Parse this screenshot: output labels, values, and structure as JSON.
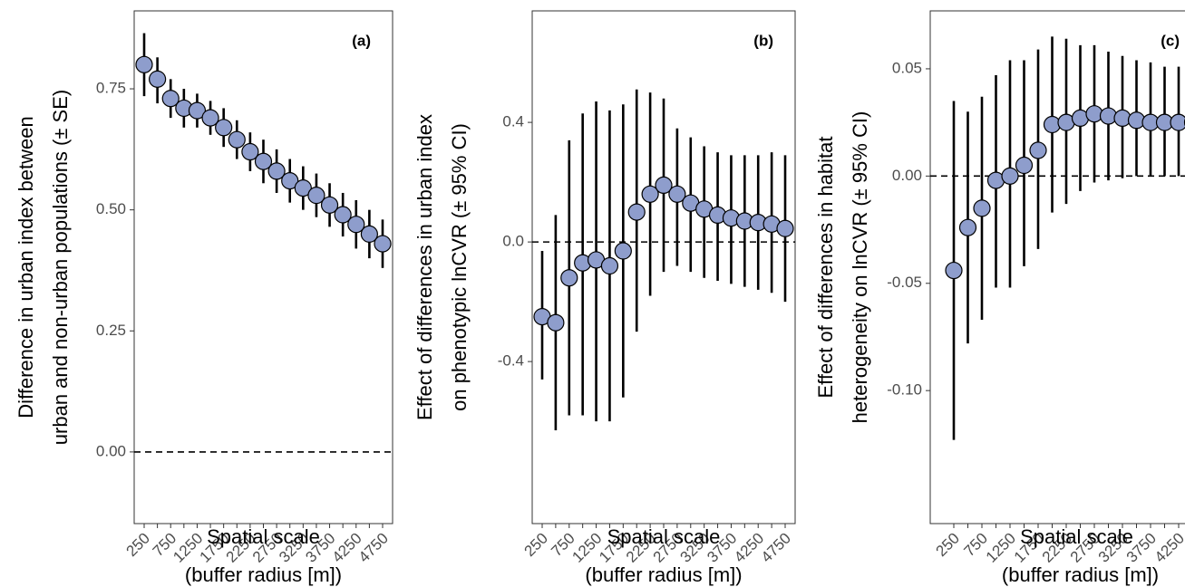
{
  "chart_data": [
    {
      "type": "errorbar",
      "panel_label": "(a)",
      "y_label": [
        "Difference in urban index between",
        "urban and non-urban populations (± SE)"
      ],
      "x_label": [
        "Spatial scale",
        "(buffer radius [m])"
      ],
      "categories": [
        "250",
        null,
        "750",
        null,
        "1250",
        null,
        "1750",
        null,
        "2250",
        null,
        "2750",
        null,
        "3250",
        null,
        "3750",
        null,
        "4250",
        null,
        "4750"
      ],
      "values": [
        0.8,
        0.77,
        0.73,
        0.71,
        0.705,
        0.69,
        0.67,
        0.645,
        0.62,
        0.6,
        0.58,
        0.56,
        0.545,
        0.53,
        0.51,
        0.49,
        0.47,
        0.45,
        0.43
      ],
      "lower": [
        0.735,
        0.72,
        0.69,
        0.67,
        0.67,
        0.655,
        0.63,
        0.605,
        0.58,
        0.555,
        0.535,
        0.515,
        0.5,
        0.485,
        0.465,
        0.445,
        0.42,
        0.4,
        0.38
      ],
      "upper": [
        0.865,
        0.815,
        0.77,
        0.75,
        0.74,
        0.725,
        0.71,
        0.685,
        0.66,
        0.645,
        0.625,
        0.605,
        0.59,
        0.575,
        0.555,
        0.535,
        0.52,
        0.5,
        0.48
      ],
      "color": "#8e9dcc",
      "hline": 0,
      "ylim": [
        -0.148,
        0.911
      ],
      "yticks": [
        {
          "value": 0,
          "label": "0.00"
        },
        {
          "value": 0.25,
          "label": "0.25"
        },
        {
          "value": 0.5,
          "label": "0.50"
        },
        {
          "value": 0.75,
          "label": "0.75"
        }
      ]
    },
    {
      "type": "errorbar",
      "panel_label": "(b)",
      "y_label": [
        "Effect of differences in urban index",
        "on phenotypic lnCVR (± 95% CI)"
      ],
      "x_label": [
        "Spatial scale",
        "(buffer radius [m])"
      ],
      "categories": [
        "250",
        null,
        "750",
        null,
        "1250",
        null,
        "1750",
        null,
        "2250",
        null,
        "2750",
        null,
        "3250",
        null,
        "3750",
        null,
        "4250",
        null,
        "4750"
      ],
      "values": [
        -0.25,
        -0.27,
        -0.12,
        -0.07,
        -0.06,
        -0.08,
        -0.03,
        0.1,
        0.16,
        0.19,
        0.16,
        0.13,
        0.11,
        0.09,
        0.08,
        0.07,
        0.065,
        0.06,
        0.045
      ],
      "lower": [
        -0.46,
        -0.63,
        -0.58,
        -0.58,
        -0.6,
        -0.6,
        -0.52,
        -0.3,
        -0.18,
        -0.1,
        -0.08,
        -0.1,
        -0.12,
        -0.13,
        -0.14,
        -0.15,
        -0.16,
        -0.17,
        -0.2
      ],
      "upper": [
        -0.03,
        0.09,
        0.34,
        0.43,
        0.47,
        0.44,
        0.46,
        0.51,
        0.5,
        0.48,
        0.38,
        0.35,
        0.32,
        0.3,
        0.29,
        0.29,
        0.29,
        0.3,
        0.29
      ],
      "color": "#8e9dcc",
      "hline": 0,
      "ylim": [
        -0.942,
        0.773
      ],
      "yticks": [
        -0.4,
        {
          "value": 0,
          "label": "0.0"
        },
        0.4
      ]
    },
    {
      "type": "errorbar",
      "panel_label": "(c)",
      "y_label": [
        "Effect of differences in habitat",
        "heterogeneity on lnCVR (± 95% CI)"
      ],
      "x_label": [
        "Spatial scale",
        "(buffer radius [m])"
      ],
      "categories": [
        "250",
        null,
        "750",
        null,
        "1250",
        null,
        "1750",
        null,
        "2250",
        null,
        "2750",
        null,
        "3250",
        null,
        "3750",
        null,
        "4250",
        null,
        "4750"
      ],
      "values": [
        -0.044,
        -0.024,
        -0.015,
        -0.002,
        0.0,
        0.005,
        0.012,
        0.024,
        0.025,
        0.027,
        0.029,
        0.028,
        0.027,
        0.026,
        0.025,
        0.025,
        0.025,
        0.025,
        0.025
      ],
      "lower": [
        -0.123,
        -0.078,
        -0.067,
        -0.052,
        -0.052,
        -0.042,
        -0.034,
        -0.017,
        -0.013,
        -0.007,
        -0.003,
        -0.002,
        -0.001,
        0.0,
        0.0,
        0.0,
        0.0,
        0.0,
        0.0
      ],
      "upper": [
        0.035,
        0.03,
        0.037,
        0.047,
        0.054,
        0.054,
        0.059,
        0.065,
        0.064,
        0.061,
        0.061,
        0.058,
        0.056,
        0.054,
        0.053,
        0.051,
        0.051,
        0.051,
        0.051
      ],
      "color": "#8e9dcc",
      "hline": 0,
      "ylim": [
        -0.162,
        0.077
      ],
      "yticks": [
        {
          "value": -0.1,
          "label": "-0.10"
        },
        {
          "value": -0.05,
          "label": "-0.05"
        },
        {
          "value": 0,
          "label": "0.00"
        },
        {
          "value": 0.05,
          "label": "0.05"
        }
      ]
    }
  ]
}
